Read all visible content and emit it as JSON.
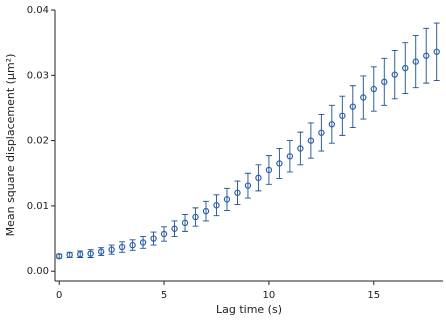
{
  "chart_data": {
    "type": "scatter",
    "x_label": "Lag time (s)",
    "y_label": "Mean square displacement (µm²)",
    "xlim": [
      -0.2,
      18.3
    ],
    "xticks": [
      0,
      5,
      10,
      15
    ],
    "ylim": [
      -0.0015,
      0.04
    ],
    "yticks": [
      {
        "value": 0,
        "label": "0.00"
      },
      0.01,
      0.02,
      0.03,
      0.04
    ],
    "series": [
      {
        "color": "#2a62a8",
        "x": [
          0,
          0.5,
          1,
          1.5,
          2,
          2.5,
          3,
          3.5,
          4,
          4.5,
          5,
          5.5,
          6,
          6.5,
          7,
          7.5,
          8,
          8.5,
          9,
          9.5,
          10,
          10.5,
          11,
          11.5,
          12,
          12.5,
          13,
          13.5,
          14,
          14.5,
          15,
          15.5,
          16,
          16.5,
          17,
          17.5,
          18
        ],
        "values": [
          0.0023,
          0.0025,
          0.0026,
          0.0027,
          0.003,
          0.0033,
          0.0037,
          0.004,
          0.0044,
          0.005,
          0.0057,
          0.0065,
          0.0074,
          0.0083,
          0.0092,
          0.0101,
          0.011,
          0.012,
          0.0131,
          0.0143,
          0.0155,
          0.0165,
          0.0176,
          0.0188,
          0.02,
          0.0212,
          0.0225,
          0.0238,
          0.0252,
          0.0266,
          0.0279,
          0.029,
          0.0301,
          0.0311,
          0.0321,
          0.033,
          0.0336
        ],
        "errors": [
          0.0003,
          0.0004,
          0.0005,
          0.0006,
          0.0006,
          0.0007,
          0.0008,
          0.0008,
          0.0009,
          0.001,
          0.0011,
          0.0012,
          0.0013,
          0.0014,
          0.0015,
          0.0016,
          0.0017,
          0.0018,
          0.0019,
          0.002,
          0.0022,
          0.0023,
          0.0024,
          0.0025,
          0.0027,
          0.0028,
          0.0029,
          0.003,
          0.0032,
          0.0033,
          0.0034,
          0.0036,
          0.0037,
          0.0039,
          0.004,
          0.0042,
          0.0044
        ]
      }
    ]
  }
}
